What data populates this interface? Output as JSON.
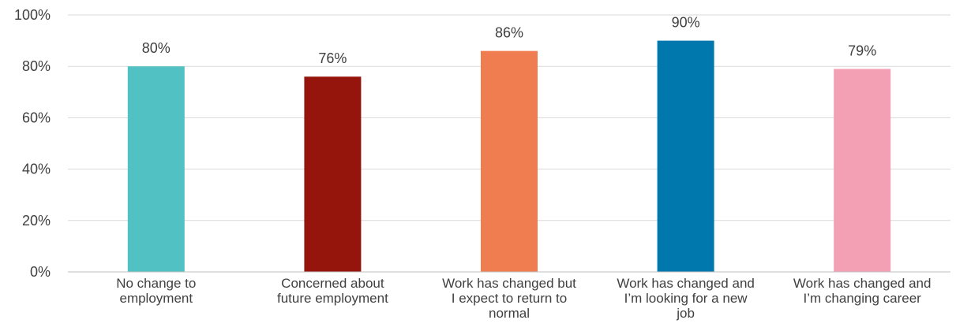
{
  "chart_data": {
    "type": "bar",
    "title": "",
    "xlabel": "",
    "ylabel": "",
    "ylim": [
      0,
      100
    ],
    "yticks": [
      0,
      20,
      40,
      60,
      80,
      100
    ],
    "ytick_suffix": "%",
    "grid": true,
    "legend": "none",
    "categories": [
      [
        "No change to",
        "employment"
      ],
      [
        "Concerned about",
        "future employment"
      ],
      [
        "Work has changed but",
        "I expect to return to",
        "normal"
      ],
      [
        "Work has changed and",
        "I’m looking for a new",
        "job"
      ],
      [
        "Work has changed and",
        "I’m changing career"
      ]
    ],
    "values": [
      80,
      76,
      86,
      90,
      79
    ],
    "data_labels": [
      "80%",
      "76%",
      "86%",
      "90%",
      "79%"
    ],
    "colors": [
      "#52c1c4",
      "#95140c",
      "#f07d50",
      "#0078ad",
      "#f4a0b4"
    ]
  }
}
